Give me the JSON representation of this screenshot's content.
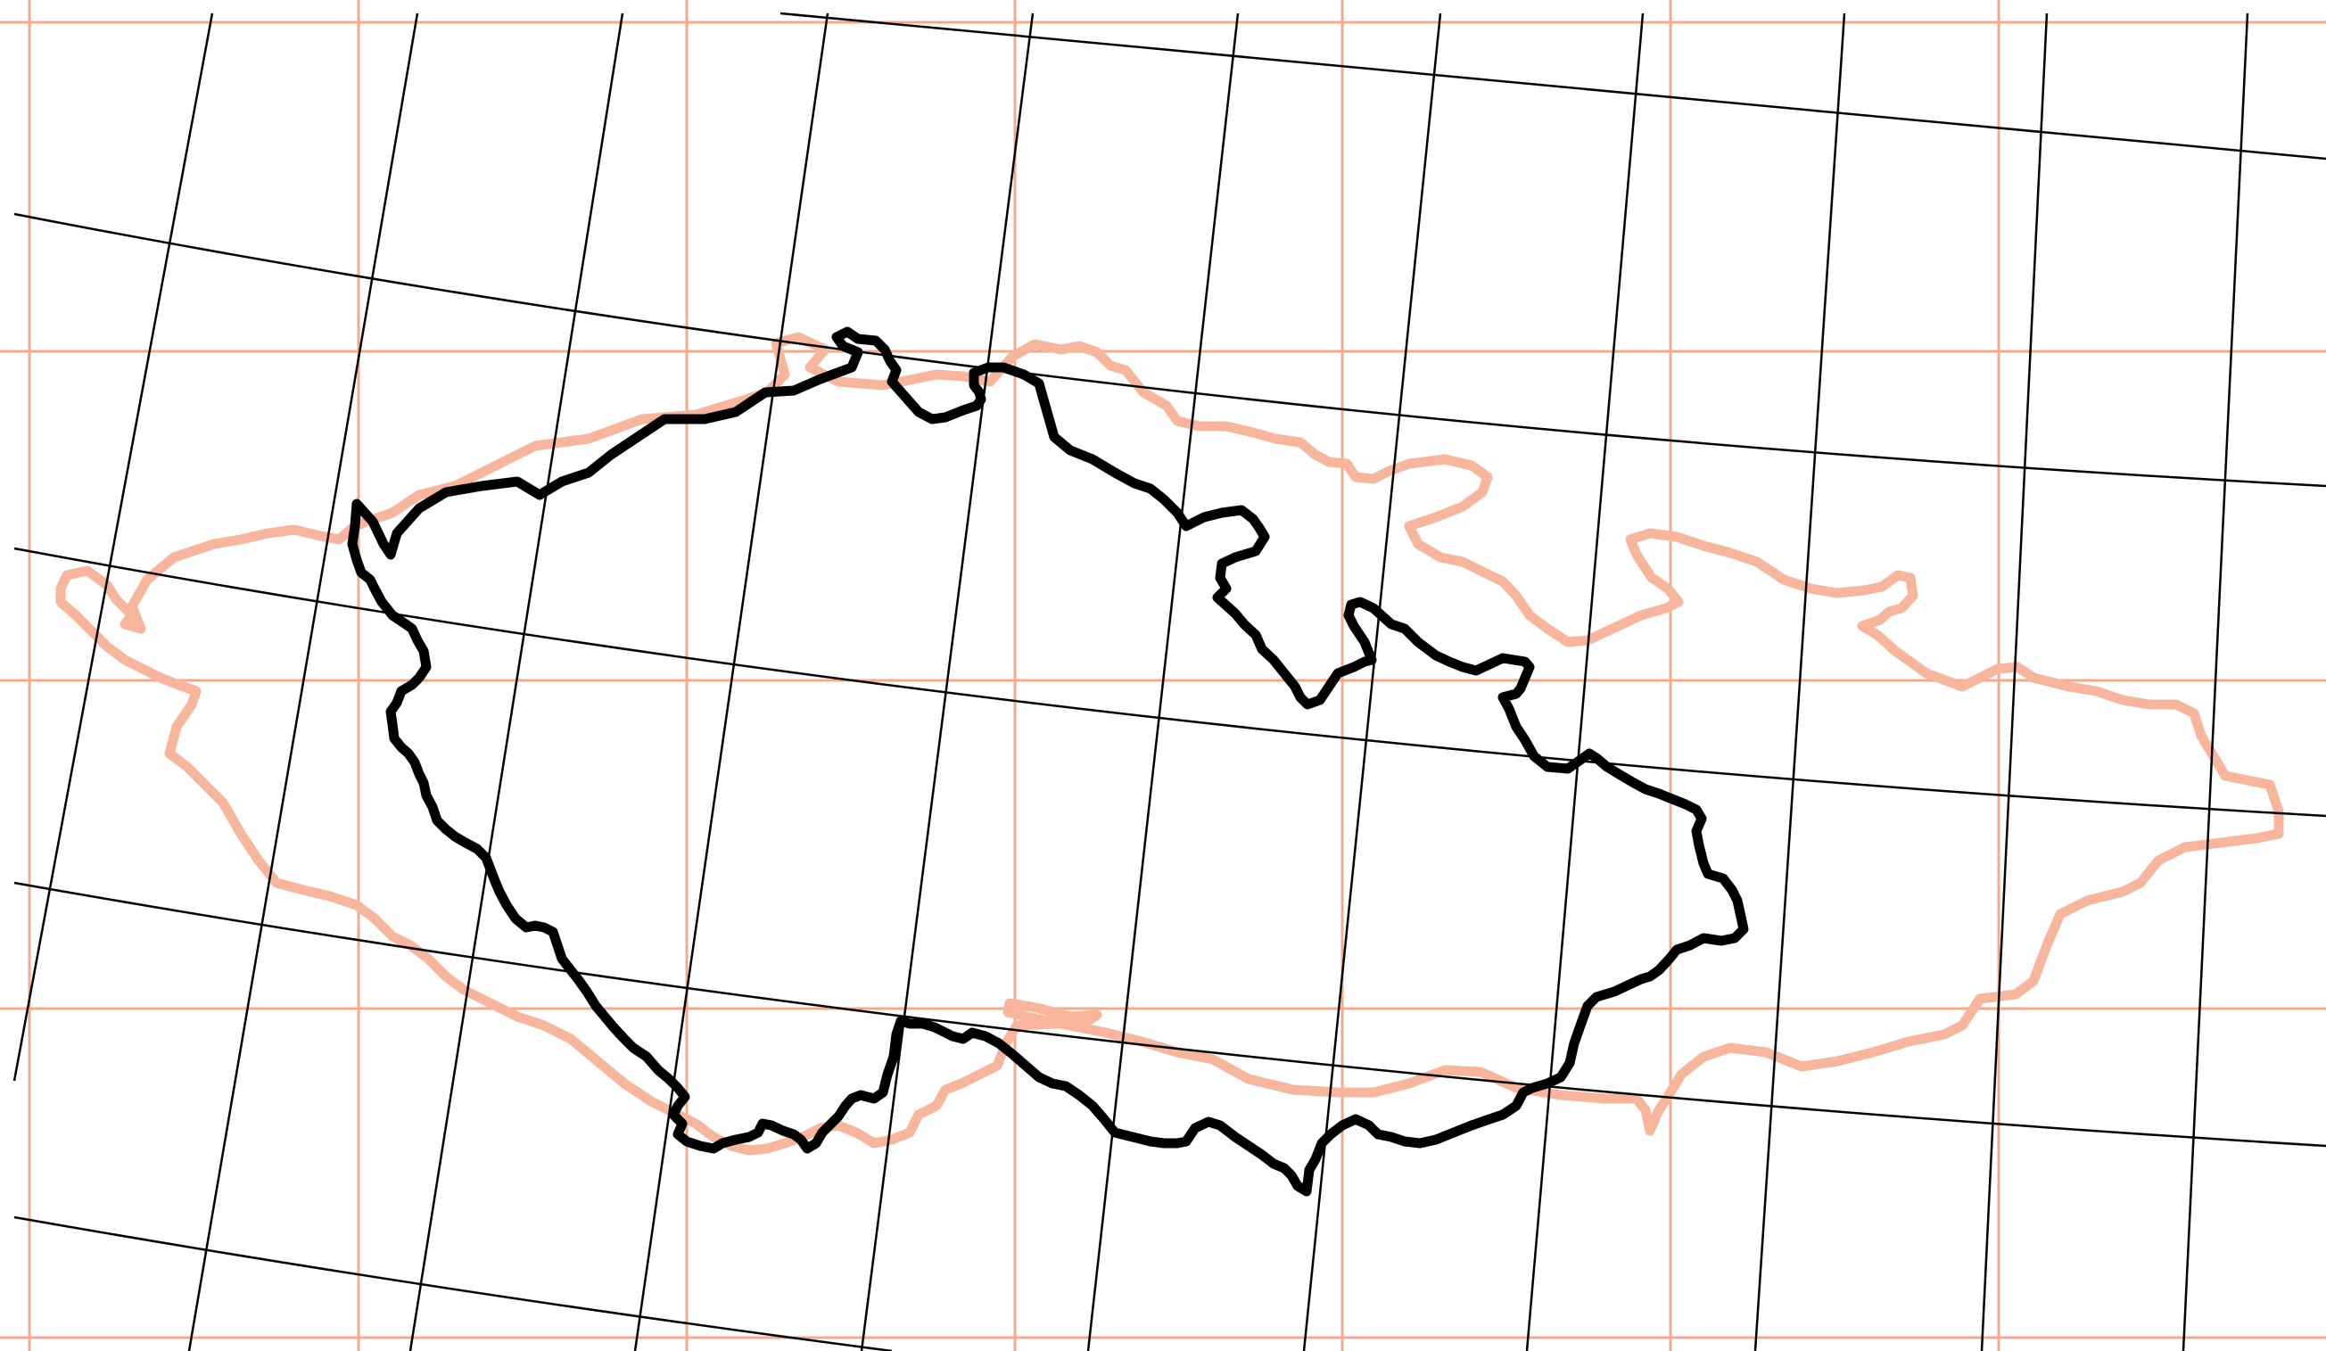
{
  "map": {
    "colors": {
      "background": "#ffffff",
      "reference_grid": "#f5a98a",
      "reference_outline": "#f7b69c",
      "projected_grid": "#000000",
      "projected_outline": "#000000"
    },
    "layers": [
      "reference-graticule",
      "reference-country-outline",
      "projected-graticule",
      "projected-country-outline"
    ]
  }
}
